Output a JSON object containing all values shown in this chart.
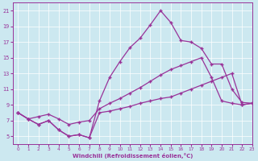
{
  "line1_x": [
    0,
    1,
    2,
    3,
    4,
    5,
    6,
    7,
    8,
    9,
    10,
    11,
    12,
    13,
    14,
    15,
    16,
    17,
    18,
    19,
    20,
    21,
    22,
    23
  ],
  "line1_y": [
    8.0,
    7.2,
    6.5,
    7.0,
    5.8,
    5.0,
    5.2,
    4.8,
    9.5,
    12.5,
    14.5,
    16.3,
    17.5,
    19.2,
    21.0,
    19.5,
    17.2,
    17.0,
    16.2,
    14.2,
    14.2,
    11.0,
    9.3,
    9.2
  ],
  "line2_x": [
    0,
    1,
    2,
    3,
    4,
    5,
    6,
    7,
    8,
    9,
    10,
    11,
    12,
    13,
    14,
    15,
    16,
    17,
    18,
    19,
    20,
    21,
    22,
    23
  ],
  "line2_y": [
    8.0,
    7.2,
    7.5,
    7.8,
    7.2,
    6.5,
    6.8,
    7.0,
    8.5,
    9.2,
    9.8,
    10.5,
    11.2,
    12.0,
    12.8,
    13.5,
    14.0,
    14.5,
    15.0,
    12.5,
    9.5,
    9.2,
    9.0,
    9.2
  ],
  "line3_x": [
    0,
    1,
    2,
    3,
    4,
    5,
    6,
    7,
    8,
    9,
    10,
    11,
    12,
    13,
    14,
    15,
    16,
    17,
    18,
    19,
    20,
    21,
    22,
    23
  ],
  "line3_y": [
    8.0,
    7.2,
    6.5,
    7.0,
    5.8,
    5.0,
    5.2,
    4.8,
    8.0,
    8.2,
    8.5,
    8.8,
    9.2,
    9.5,
    9.8,
    10.0,
    10.5,
    11.0,
    11.5,
    12.0,
    12.5,
    13.0,
    9.0,
    9.2
  ],
  "line_color": "#993399",
  "bg_color": "#cce8f0",
  "xlabel": "Windchill (Refroidissement éolien,°C)",
  "ylim": [
    4,
    22
  ],
  "xlim": [
    -0.5,
    23
  ],
  "yticks": [
    5,
    7,
    9,
    11,
    13,
    15,
    17,
    19,
    21
  ],
  "xticks": [
    0,
    1,
    2,
    3,
    4,
    5,
    6,
    7,
    8,
    9,
    10,
    11,
    12,
    13,
    14,
    15,
    16,
    17,
    18,
    19,
    20,
    21,
    22,
    23
  ]
}
